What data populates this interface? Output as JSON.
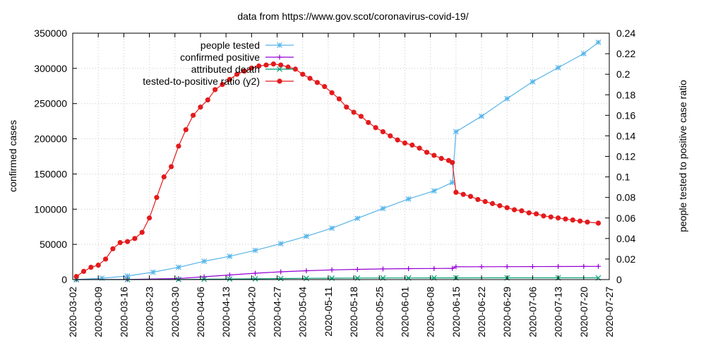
{
  "chart_data": {
    "type": "line",
    "title": "data from https://www.gov.scot/coronavirus-covid-19/",
    "ylabel": "confirmed cases",
    "y2label": "people tested to positive case ratio",
    "xlabel": "",
    "ylim": [
      0,
      350000
    ],
    "y2lim": [
      0,
      0.24
    ],
    "xlim": [
      "2020-03-02",
      "2020-07-27"
    ],
    "grid": true,
    "legend_position": "top-left",
    "y_ticks": [
      0,
      50000,
      100000,
      150000,
      200000,
      250000,
      300000,
      350000
    ],
    "y2_ticks": [
      "0",
      "0.02",
      "0.04",
      "0.06",
      "0.08",
      "0.1",
      "0.12",
      "0.14",
      "0.16",
      "0.18",
      "0.2",
      "0.22",
      "0.24"
    ],
    "x_ticks": [
      "2020-03-02",
      "2020-03-09",
      "2020-03-16",
      "2020-03-23",
      "2020-03-30",
      "2020-04-06",
      "2020-04-13",
      "2020-04-20",
      "2020-04-27",
      "2020-05-04",
      "2020-05-11",
      "2020-05-18",
      "2020-05-25",
      "2020-06-01",
      "2020-06-08",
      "2020-06-15",
      "2020-06-22",
      "2020-06-29",
      "2020-07-06",
      "2020-07-13",
      "2020-07-20",
      "2020-07-27"
    ],
    "series": [
      {
        "name": "people tested",
        "axis": "y",
        "color": "#56b4e9",
        "marker": "star",
        "points": [
          [
            "2020-03-03",
            0
          ],
          [
            "2020-03-10",
            2000
          ],
          [
            "2020-03-17",
            5000
          ],
          [
            "2020-03-24",
            10500
          ],
          [
            "2020-03-31",
            17500
          ],
          [
            "2020-04-07",
            26000
          ],
          [
            "2020-04-14",
            33000
          ],
          [
            "2020-04-21",
            41500
          ],
          [
            "2020-04-28",
            51000
          ],
          [
            "2020-05-05",
            61500
          ],
          [
            "2020-05-12",
            73000
          ],
          [
            "2020-05-19",
            87000
          ],
          [
            "2020-05-26",
            101000
          ],
          [
            "2020-06-02",
            114500
          ],
          [
            "2020-06-09",
            126000
          ],
          [
            "2020-06-14",
            138000
          ],
          [
            "2020-06-15",
            210000
          ],
          [
            "2020-06-22",
            232000
          ],
          [
            "2020-06-29",
            257000
          ],
          [
            "2020-07-06",
            281000
          ],
          [
            "2020-07-13",
            301000
          ],
          [
            "2020-07-20",
            321000
          ],
          [
            "2020-07-24",
            337000
          ]
        ]
      },
      {
        "name": "confirmed positive",
        "axis": "y",
        "color": "#9400d3",
        "marker": "plus",
        "points": [
          [
            "2020-03-03",
            0
          ],
          [
            "2020-03-17",
            200
          ],
          [
            "2020-03-31",
            1500
          ],
          [
            "2020-04-07",
            4000
          ],
          [
            "2020-04-14",
            6500
          ],
          [
            "2020-04-21",
            9000
          ],
          [
            "2020-04-28",
            11000
          ],
          [
            "2020-05-05",
            12500
          ],
          [
            "2020-05-12",
            13700
          ],
          [
            "2020-05-19",
            14500
          ],
          [
            "2020-05-26",
            15100
          ],
          [
            "2020-06-02",
            15500
          ],
          [
            "2020-06-09",
            15700
          ],
          [
            "2020-06-14",
            15900
          ],
          [
            "2020-06-15",
            18200
          ],
          [
            "2020-06-22",
            18300
          ],
          [
            "2020-06-29",
            18400
          ],
          [
            "2020-07-06",
            18500
          ],
          [
            "2020-07-13",
            18600
          ],
          [
            "2020-07-20",
            18700
          ],
          [
            "2020-07-24",
            18800
          ]
        ]
      },
      {
        "name": "attributed death",
        "axis": "y",
        "color": "#009e73",
        "marker": "x",
        "points": [
          [
            "2020-03-03",
            0
          ],
          [
            "2020-03-17",
            10
          ],
          [
            "2020-03-31",
            200
          ],
          [
            "2020-04-07",
            500
          ],
          [
            "2020-04-14",
            800
          ],
          [
            "2020-04-21",
            1100
          ],
          [
            "2020-04-28",
            1500
          ],
          [
            "2020-05-05",
            1800
          ],
          [
            "2020-05-12",
            2000
          ],
          [
            "2020-05-19",
            2200
          ],
          [
            "2020-05-26",
            2300
          ],
          [
            "2020-06-02",
            2350
          ],
          [
            "2020-06-09",
            2400
          ],
          [
            "2020-06-15",
            2450
          ],
          [
            "2020-06-29",
            2480
          ],
          [
            "2020-07-13",
            2490
          ],
          [
            "2020-07-24",
            2491
          ]
        ]
      },
      {
        "name": "tested-to-positive ratio (y2)",
        "axis": "y2",
        "color": "#e41a1c",
        "marker": "circle",
        "points": [
          [
            "2020-03-03",
            0.003
          ],
          [
            "2020-03-05",
            0.008
          ],
          [
            "2020-03-07",
            0.012
          ],
          [
            "2020-03-09",
            0.014
          ],
          [
            "2020-03-11",
            0.02
          ],
          [
            "2020-03-13",
            0.03
          ],
          [
            "2020-03-15",
            0.036
          ],
          [
            "2020-03-17",
            0.037
          ],
          [
            "2020-03-19",
            0.04
          ],
          [
            "2020-03-21",
            0.046
          ],
          [
            "2020-03-23",
            0.06
          ],
          [
            "2020-03-25",
            0.08
          ],
          [
            "2020-03-27",
            0.1
          ],
          [
            "2020-03-29",
            0.11
          ],
          [
            "2020-03-31",
            0.13
          ],
          [
            "2020-04-02",
            0.146
          ],
          [
            "2020-04-04",
            0.16
          ],
          [
            "2020-04-06",
            0.168
          ],
          [
            "2020-04-08",
            0.175
          ],
          [
            "2020-04-10",
            0.185
          ],
          [
            "2020-04-12",
            0.19
          ],
          [
            "2020-04-14",
            0.195
          ],
          [
            "2020-04-16",
            0.2
          ],
          [
            "2020-04-18",
            0.203
          ],
          [
            "2020-04-20",
            0.206
          ],
          [
            "2020-04-22",
            0.208
          ],
          [
            "2020-04-24",
            0.209
          ],
          [
            "2020-04-26",
            0.21
          ],
          [
            "2020-04-28",
            0.209
          ],
          [
            "2020-04-30",
            0.207
          ],
          [
            "2020-05-02",
            0.205
          ],
          [
            "2020-05-04",
            0.2
          ],
          [
            "2020-05-06",
            0.196
          ],
          [
            "2020-05-08",
            0.192
          ],
          [
            "2020-05-10",
            0.188
          ],
          [
            "2020-05-12",
            0.182
          ],
          [
            "2020-05-14",
            0.176
          ],
          [
            "2020-05-16",
            0.168
          ],
          [
            "2020-05-18",
            0.163
          ],
          [
            "2020-05-20",
            0.159
          ],
          [
            "2020-05-22",
            0.153
          ],
          [
            "2020-05-24",
            0.148
          ],
          [
            "2020-05-26",
            0.144
          ],
          [
            "2020-05-28",
            0.14
          ],
          [
            "2020-05-30",
            0.136
          ],
          [
            "2020-06-01",
            0.133
          ],
          [
            "2020-06-03",
            0.131
          ],
          [
            "2020-06-05",
            0.128
          ],
          [
            "2020-06-07",
            0.124
          ],
          [
            "2020-06-09",
            0.121
          ],
          [
            "2020-06-11",
            0.118
          ],
          [
            "2020-06-13",
            0.116
          ],
          [
            "2020-06-14",
            0.114
          ],
          [
            "2020-06-15",
            0.085
          ],
          [
            "2020-06-17",
            0.083
          ],
          [
            "2020-06-19",
            0.081
          ],
          [
            "2020-06-21",
            0.078
          ],
          [
            "2020-06-23",
            0.076
          ],
          [
            "2020-06-25",
            0.074
          ],
          [
            "2020-06-27",
            0.072
          ],
          [
            "2020-06-29",
            0.07
          ],
          [
            "2020-07-01",
            0.068
          ],
          [
            "2020-07-03",
            0.067
          ],
          [
            "2020-07-05",
            0.065
          ],
          [
            "2020-07-07",
            0.064
          ],
          [
            "2020-07-09",
            0.062
          ],
          [
            "2020-07-11",
            0.061
          ],
          [
            "2020-07-13",
            0.06
          ],
          [
            "2020-07-15",
            0.059
          ],
          [
            "2020-07-17",
            0.058
          ],
          [
            "2020-07-19",
            0.057
          ],
          [
            "2020-07-21",
            0.056
          ],
          [
            "2020-07-24",
            0.055
          ]
        ]
      }
    ]
  }
}
